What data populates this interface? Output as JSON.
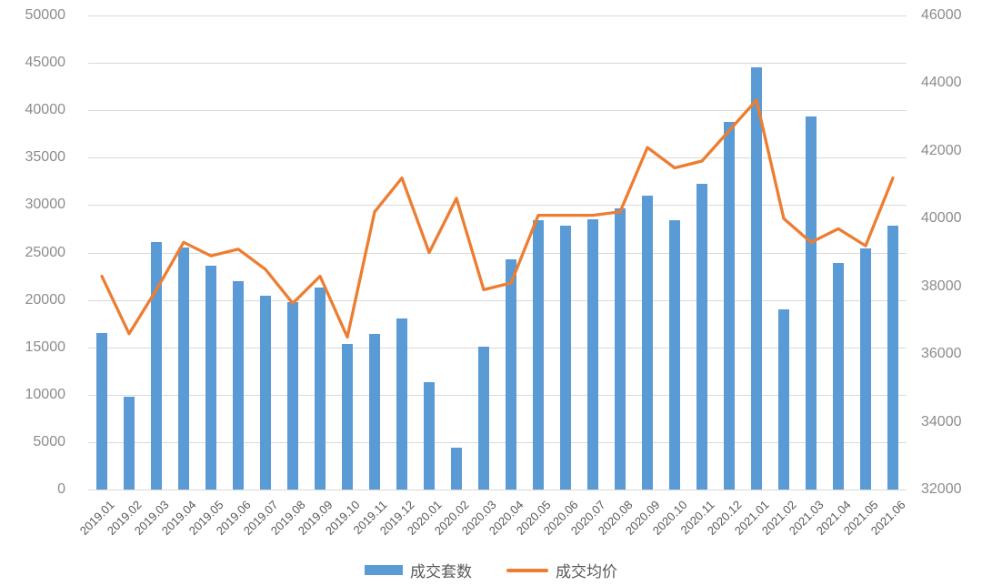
{
  "chart_data": {
    "type": "bar+line dual-axis",
    "title": "",
    "categories": [
      "2019.01",
      "2019.02",
      "2019.03",
      "2019.04",
      "2019.05",
      "2019.06",
      "2019.07",
      "2019.08",
      "2019.09",
      "2019.10",
      "2019.11",
      "2019.12",
      "2020.01",
      "2020.02",
      "2020.03",
      "2020.04",
      "2020.05",
      "2020.06",
      "2020.07",
      "2020.08",
      "2020.09",
      "2020.10",
      "2020.11",
      "2020.12",
      "2021.01",
      "2021.02",
      "2021.03",
      "2021.04",
      "2021.05",
      "2021.06"
    ],
    "series": [
      {
        "name": "成交套数",
        "type": "bar",
        "axis": "left",
        "color": "#5b9bd5",
        "values": [
          16500,
          9800,
          26100,
          25500,
          23600,
          22000,
          20400,
          19800,
          21300,
          15400,
          16400,
          18000,
          11300,
          4400,
          15100,
          24300,
          28400,
          27800,
          28500,
          29700,
          31000,
          28400,
          32200,
          38800,
          44500,
          19000,
          39300,
          23900,
          25400,
          27800
        ]
      },
      {
        "name": "成交均价",
        "type": "line",
        "axis": "right",
        "color": "#ed7d31",
        "values": [
          38300,
          36600,
          37900,
          39300,
          38900,
          39100,
          38500,
          37500,
          38300,
          36500,
          40200,
          41200,
          39000,
          40600,
          37900,
          38100,
          40100,
          40100,
          40100,
          40200,
          42100,
          41500,
          41700,
          42600,
          43500,
          40000,
          39300,
          39700,
          39200,
          41200
        ]
      }
    ],
    "left_axis": {
      "min": 0,
      "max": 50000,
      "step": 5000,
      "ticks": [
        "50000",
        "45000",
        "40000",
        "35000",
        "30000",
        "25000",
        "20000",
        "15000",
        "10000",
        "5000",
        "0"
      ]
    },
    "right_axis": {
      "min": 32000,
      "max": 46000,
      "step": 2000,
      "ticks": [
        "46000",
        "44000",
        "42000",
        "40000",
        "38000",
        "36000",
        "34000",
        "32000"
      ]
    },
    "grid": true,
    "legend_position": "bottom",
    "legend": [
      "成交套数",
      "成交均价"
    ]
  },
  "colors": {
    "bar": "#5b9bd5",
    "line": "#ed7d31",
    "gridline": "#d9d9d9",
    "y_tick_text": "#8c8c8c",
    "x_tick_text": "#595959",
    "legend_text": "#595959",
    "background": "#ffffff"
  }
}
